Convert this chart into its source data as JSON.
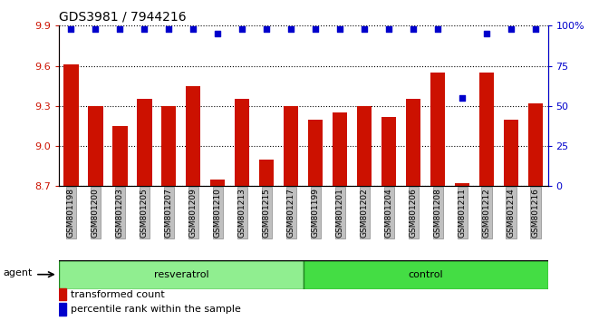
{
  "title": "GDS3981 / 7944216",
  "samples": [
    "GSM801198",
    "GSM801200",
    "GSM801203",
    "GSM801205",
    "GSM801207",
    "GSM801209",
    "GSM801210",
    "GSM801213",
    "GSM801215",
    "GSM801217",
    "GSM801199",
    "GSM801201",
    "GSM801202",
    "GSM801204",
    "GSM801206",
    "GSM801208",
    "GSM801211",
    "GSM801212",
    "GSM801214",
    "GSM801216"
  ],
  "transformed_count": [
    9.61,
    9.3,
    9.15,
    9.35,
    9.3,
    9.45,
    8.75,
    9.35,
    8.9,
    9.3,
    9.2,
    9.25,
    9.3,
    9.22,
    9.35,
    9.55,
    8.72,
    9.55,
    9.2,
    9.32
  ],
  "percentile_rank": [
    98,
    98,
    98,
    98,
    98,
    98,
    95,
    98,
    98,
    98,
    98,
    98,
    98,
    98,
    98,
    98,
    55,
    95,
    98,
    98
  ],
  "resveratrol_indices": [
    0,
    1,
    2,
    3,
    4,
    5,
    6,
    7,
    8,
    9
  ],
  "control_indices": [
    10,
    11,
    12,
    13,
    14,
    15,
    16,
    17,
    18,
    19
  ],
  "group_labels": [
    "resveratrol",
    "control"
  ],
  "bar_color": "#CC1100",
  "dot_color": "#0000CC",
  "ylim": [
    8.7,
    9.9
  ],
  "yticks": [
    8.7,
    9.0,
    9.3,
    9.6,
    9.9
  ],
  "right_yticks": [
    0,
    25,
    50,
    75,
    100
  ],
  "right_ytick_labels": [
    "0",
    "25",
    "50",
    "75",
    "100%"
  ],
  "legend_transformed": "transformed count",
  "legend_percentile": "percentile rank within the sample",
  "agent_label": "agent",
  "bar_width": 0.6,
  "tick_label_color_left": "#CC1100",
  "tick_label_color_right": "#0000CC",
  "xticklabel_bg": "#C0C0C0",
  "resv_color": "#90EE90",
  "ctrl_color": "#44DD44",
  "group_edge_color": "#228822"
}
